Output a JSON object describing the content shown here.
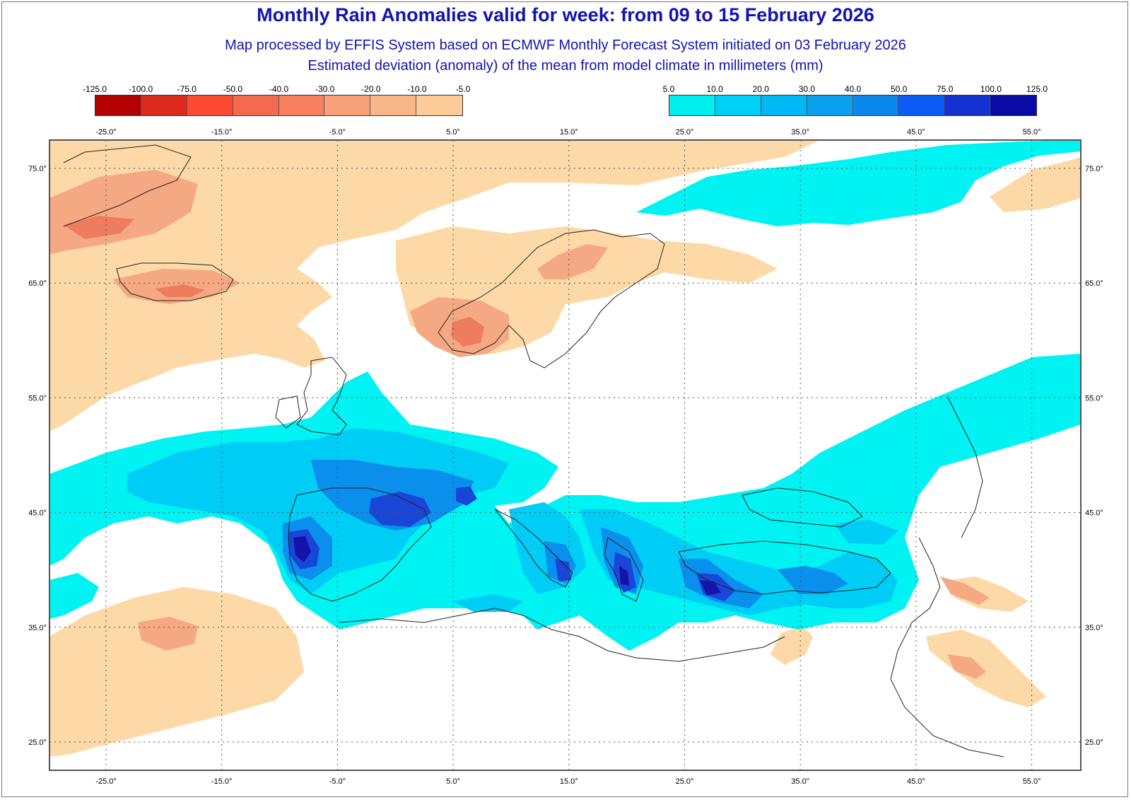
{
  "title": "Monthly Rain Anomalies valid for week: from 09 to 15 February 2026",
  "subtitle1": "Map processed by EFFIS System based on ECMWF Monthly Forecast System initiated on 03 February 2026",
  "subtitle2": "Estimated deviation (anomaly) of the mean from model climate in millimeters (mm)",
  "legend_negative": {
    "labels": [
      "-125.0",
      "-100.0",
      "-75.0",
      "-50.0",
      "-40.0",
      "-30.0",
      "-20.0",
      "-10.0",
      "-5.0"
    ],
    "colors": [
      "#b30000",
      "#dd2a1f",
      "#ff4a33",
      "#f56a4f",
      "#f8805f",
      "#f7a07a",
      "#f9b689",
      "#fccb96"
    ]
  },
  "legend_positive": {
    "labels": [
      "5.0",
      "10.0",
      "20.0",
      "30.0",
      "40.0",
      "50.0",
      "75.0",
      "100.0",
      "125.0"
    ],
    "colors": [
      "#00f0f0",
      "#00d0f5",
      "#00b8f5",
      "#0aa0f0",
      "#0a88ee",
      "#0b5cf5",
      "#1432d2",
      "#0a0aa5"
    ]
  },
  "map": {
    "lon_ticks": [
      "-25.0°",
      "-15.0°",
      "-5.0°",
      "5.0°",
      "15.0°",
      "25.0°",
      "35.0°",
      "45.0°",
      "55.0°"
    ],
    "lat_ticks": [
      "75.0°",
      "65.0°",
      "55.0°",
      "45.0°",
      "35.0°",
      "25.0°"
    ],
    "colors": {
      "dry_light": "#fcd9a6",
      "dry_mid": "#f5a982",
      "dry_strong": "#ee7c5f",
      "wet_light": "#00f3f3",
      "wet_mid": "#00cdf5",
      "wet_strong": "#0a8fec",
      "wet_dark": "#1a46d8",
      "wet_darkest": "#1414a8",
      "coast": "#222222",
      "grid": "#555555"
    }
  }
}
